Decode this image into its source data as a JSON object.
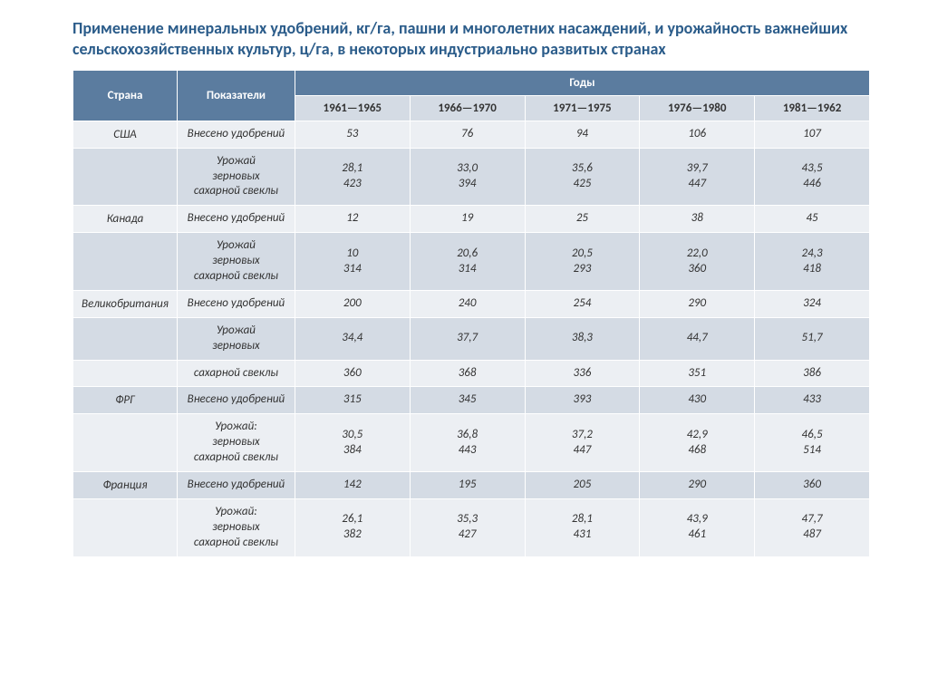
{
  "title": "Применение минеральных удобрений, кг/га, пашни и многолетних насаждений, и урожайность важнейших сельскохозяйственных культур, ц/га, в некоторых индустриально развитых странах",
  "header": {
    "country": "Страна",
    "indicator": "Показатели",
    "years_group": "Годы",
    "years": [
      "1961—1965",
      "1966—1970",
      "1971—1975",
      "1976—1980",
      "1981—1962"
    ]
  },
  "shade": {
    "light": "#eceff3",
    "dark": "#d4dbe4",
    "header_bg": "#5b7c9f",
    "header_fg": "#ffffff",
    "title_color": "#2b5c8a"
  },
  "rows": [
    {
      "country": "США",
      "indicator": "Внесено удобрений",
      "vals": [
        "53",
        "76",
        "94",
        "106",
        "107"
      ],
      "shade": "light"
    },
    {
      "country": "",
      "indicator": "Урожай\nзерновых\nсахарной свеклы",
      "vals": [
        "28,1\n423",
        "33,0\n394",
        "35,6\n425",
        "39,7\n447",
        "43,5\n446"
      ],
      "shade": "dark"
    },
    {
      "country": "Канада",
      "indicator": "Внесено удобрений",
      "vals": [
        "12",
        "19",
        "25",
        "38",
        "45"
      ],
      "shade": "light"
    },
    {
      "country": "",
      "indicator": "Урожай\nзерновых\nсахарной свеклы",
      "vals": [
        "10\n314",
        "20,6\n314",
        "20,5\n293",
        "22,0\n360",
        "24,3\n418"
      ],
      "shade": "dark"
    },
    {
      "country": "Великобритания",
      "indicator": "Внесено удобрений",
      "vals": [
        "200",
        "240",
        "254",
        "290",
        "324"
      ],
      "shade": "light"
    },
    {
      "country": "",
      "indicator": "Урожай\nзерновых",
      "vals": [
        "34,4",
        "37,7",
        "38,3",
        "44,7",
        "51,7"
      ],
      "shade": "dark"
    },
    {
      "country": "",
      "indicator": "сахарной свеклы",
      "vals": [
        "360",
        "368",
        "336",
        "351",
        "386"
      ],
      "shade": "light"
    },
    {
      "country": "ФРГ",
      "indicator": "Внесено удобрений",
      "vals": [
        "315",
        "345",
        "393",
        "430",
        "433"
      ],
      "shade": "dark"
    },
    {
      "country": "",
      "indicator": "Урожай:\nзерновых\nсахарной свеклы",
      "vals": [
        "30,5\n384",
        "36,8\n443",
        "37,2\n447",
        "42,9\n468",
        "46,5\n514"
      ],
      "shade": "light"
    },
    {
      "country": "Франция",
      "indicator": "Внесено удобрений",
      "vals": [
        "142",
        "195",
        "205",
        "290",
        "360"
      ],
      "shade": "dark"
    },
    {
      "country": "",
      "indicator": "Урожай:\nзерновых\nсахарной свеклы",
      "vals": [
        "26,1\n382",
        "35,3\n427",
        "28,1\n431",
        "43,9\n461",
        "47,7\n487"
      ],
      "shade": "light"
    }
  ]
}
